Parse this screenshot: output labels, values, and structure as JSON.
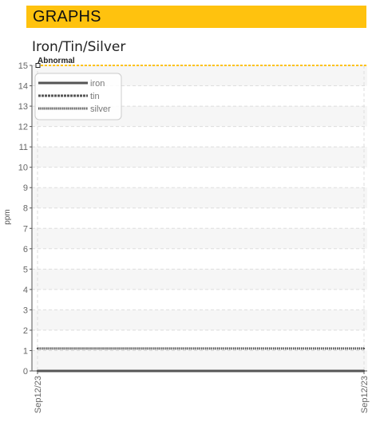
{
  "header": {
    "title": "GRAPHS"
  },
  "chart_data": {
    "type": "line",
    "title": "Iron/Tin/Silver",
    "xlabel": "",
    "ylabel": "ppm",
    "ylim": [
      0,
      15
    ],
    "y_ticks": [
      "0",
      "1",
      "2",
      "3",
      "4",
      "5",
      "6",
      "7",
      "8",
      "9",
      "10",
      "11",
      "12",
      "13",
      "14",
      "15"
    ],
    "x_ticks": [
      "Sep12/23",
      "Sep12/23"
    ],
    "grid": true,
    "legend_position": "top-left",
    "series": [
      {
        "name": "iron",
        "values": [
          0,
          0
        ],
        "color": "#555555",
        "style": "solid"
      },
      {
        "name": "tin",
        "values": [
          0,
          0
        ],
        "color": "#555555",
        "style": "dashed"
      },
      {
        "name": "silver",
        "values": [
          1.1,
          1.1
        ],
        "color": "#555555",
        "style": "dotted"
      }
    ],
    "threshold": {
      "label": "Abnormal",
      "value": 15,
      "color": "#ffc20e"
    }
  },
  "colors": {
    "header_bg": "#ffc20e",
    "grid": "#dddddd",
    "band": "#f6f6f6",
    "axis": "#555555",
    "series": "#555555",
    "threshold": "#ffc20e"
  }
}
